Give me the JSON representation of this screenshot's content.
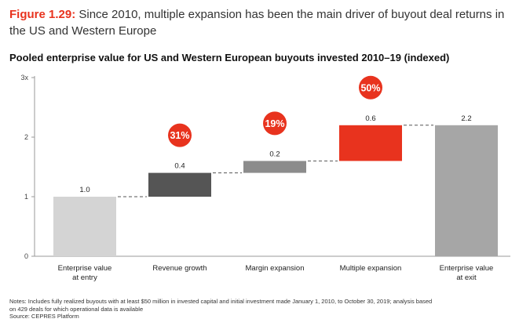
{
  "figure": {
    "label": "Figure 1.29:",
    "text": " Since 2010, multiple expansion has been the main driver of buyout deal returns in the US and Western Europe"
  },
  "subtitle": "Pooled enterprise value for US and Western European buyouts invested 2010–19 (indexed)",
  "colors": {
    "entry": "#d4d4d4",
    "revenue": "#555555",
    "margin": "#8c8c8c",
    "multiple": "#e8331e",
    "exit": "#a6a6a6",
    "badge": "#e8331e",
    "connector": "#555555"
  },
  "chart_data": {
    "type": "bar",
    "subtype": "waterfall",
    "categories": [
      "Enterprise value\nat entry",
      "Revenue growth",
      "Margin expansion",
      "Multiple expansion",
      "Enterprise value\nat exit"
    ],
    "bars": [
      {
        "category": "Enterprise value at entry",
        "base": 0,
        "value": 1.0,
        "label": "1.0",
        "share": null
      },
      {
        "category": "Revenue growth",
        "base": 1.0,
        "value": 0.4,
        "label": "0.4",
        "share": "31%"
      },
      {
        "category": "Margin expansion",
        "base": 1.4,
        "value": 0.2,
        "label": "0.2",
        "share": "19%"
      },
      {
        "category": "Multiple expansion",
        "base": 1.6,
        "value": 0.6,
        "label": "0.6",
        "share": "50%"
      },
      {
        "category": "Enterprise value at exit",
        "base": 0,
        "value": 2.2,
        "label": "2.2",
        "share": null
      }
    ],
    "yticks": [
      "0",
      "1",
      "2",
      "3x"
    ],
    "ylim": [
      0,
      3
    ],
    "grid": false
  },
  "notes": [
    "Notes: Includes fully realized buyouts with at least $50 million in invested capital and initial investment made January 1, 2010, to October 30, 2019; analysis based",
    "on 429 deals for which operational data is available",
    "Source: CEPRES Platform"
  ]
}
